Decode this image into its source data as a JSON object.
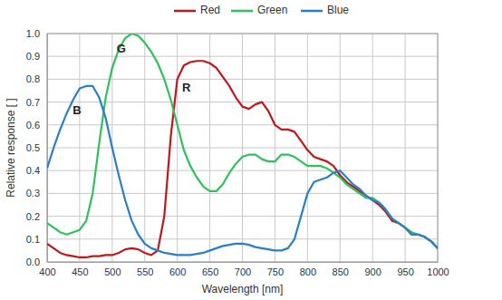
{
  "chart_data": {
    "type": "line",
    "x_label": "Wavelength [nm]",
    "y_label": "Relative response [ ]",
    "x": [
      400,
      410,
      420,
      430,
      440,
      450,
      460,
      470,
      480,
      490,
      500,
      510,
      520,
      530,
      540,
      550,
      560,
      570,
      580,
      590,
      600,
      610,
      620,
      630,
      640,
      650,
      660,
      670,
      680,
      690,
      700,
      710,
      720,
      730,
      740,
      750,
      760,
      770,
      780,
      790,
      800,
      810,
      820,
      830,
      840,
      850,
      860,
      870,
      880,
      890,
      900,
      910,
      920,
      930,
      940,
      950,
      960,
      970,
      980,
      990,
      1000
    ],
    "series": [
      {
        "name": "Red",
        "color": "#c0161c",
        "values": [
          0.08,
          0.06,
          0.04,
          0.03,
          0.025,
          0.02,
          0.02,
          0.025,
          0.025,
          0.03,
          0.03,
          0.04,
          0.055,
          0.06,
          0.055,
          0.04,
          0.03,
          0.05,
          0.2,
          0.55,
          0.8,
          0.86,
          0.875,
          0.88,
          0.88,
          0.87,
          0.85,
          0.81,
          0.77,
          0.72,
          0.68,
          0.67,
          0.69,
          0.7,
          0.66,
          0.6,
          0.58,
          0.58,
          0.57,
          0.53,
          0.49,
          0.46,
          0.45,
          0.44,
          0.42,
          0.38,
          0.35,
          0.33,
          0.31,
          0.29,
          0.27,
          0.25,
          0.22,
          0.18,
          0.17,
          0.15,
          0.12,
          0.12,
          0.11,
          0.09,
          0.06
        ]
      },
      {
        "name": "Green",
        "color": "#2ec25a",
        "values": [
          0.17,
          0.15,
          0.13,
          0.12,
          0.13,
          0.14,
          0.18,
          0.3,
          0.52,
          0.72,
          0.85,
          0.93,
          0.98,
          1.0,
          0.99,
          0.96,
          0.92,
          0.87,
          0.8,
          0.71,
          0.6,
          0.49,
          0.42,
          0.37,
          0.33,
          0.31,
          0.31,
          0.34,
          0.39,
          0.43,
          0.46,
          0.47,
          0.47,
          0.45,
          0.44,
          0.44,
          0.47,
          0.47,
          0.46,
          0.44,
          0.42,
          0.42,
          0.42,
          0.41,
          0.39,
          0.37,
          0.34,
          0.32,
          0.3,
          0.28,
          0.28,
          0.26,
          0.23,
          0.19,
          0.17,
          0.15,
          0.13,
          0.12,
          0.11,
          0.09,
          0.06
        ]
      },
      {
        "name": "Blue",
        "color": "#2a7fc9",
        "values": [
          0.41,
          0.5,
          0.58,
          0.65,
          0.71,
          0.76,
          0.77,
          0.77,
          0.72,
          0.63,
          0.5,
          0.38,
          0.27,
          0.18,
          0.12,
          0.08,
          0.06,
          0.05,
          0.04,
          0.035,
          0.03,
          0.03,
          0.03,
          0.035,
          0.04,
          0.05,
          0.06,
          0.07,
          0.075,
          0.08,
          0.08,
          0.075,
          0.065,
          0.06,
          0.055,
          0.05,
          0.05,
          0.06,
          0.1,
          0.2,
          0.3,
          0.35,
          0.36,
          0.37,
          0.39,
          0.4,
          0.37,
          0.34,
          0.32,
          0.29,
          0.27,
          0.26,
          0.23,
          0.19,
          0.17,
          0.15,
          0.12,
          0.12,
          0.11,
          0.09,
          0.06
        ]
      }
    ],
    "annotations": [
      {
        "text": "B",
        "x": 446,
        "y": 0.66
      },
      {
        "text": "G",
        "x": 514,
        "y": 0.93
      },
      {
        "text": "R",
        "x": 614,
        "y": 0.76
      }
    ],
    "xlim": [
      400,
      1000
    ],
    "xticks": [
      400,
      450,
      500,
      550,
      600,
      650,
      700,
      750,
      800,
      850,
      900,
      950,
      1000
    ],
    "ylim": [
      0,
      1.0
    ],
    "yticks": [
      {
        "value": 0,
        "label": "0.0"
      },
      {
        "value": 0.1,
        "label": "0.1"
      },
      {
        "value": 0.2,
        "label": "0.2"
      },
      {
        "value": 0.3,
        "label": "0.3"
      },
      {
        "value": 0.4,
        "label": "0.4"
      },
      {
        "value": 0.5,
        "label": "0.5"
      },
      {
        "value": 0.6,
        "label": "0.6"
      },
      {
        "value": 0.7,
        "label": "0.7"
      },
      {
        "value": 0.8,
        "label": "0.8"
      },
      {
        "value": 0.9,
        "label": "0.9"
      },
      {
        "value": 1.0,
        "label": "1.0"
      }
    ],
    "grid": true,
    "legend": "top"
  }
}
